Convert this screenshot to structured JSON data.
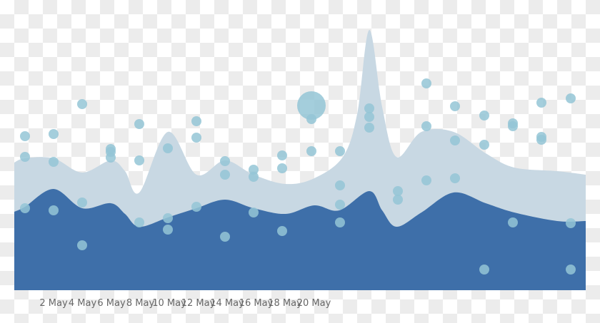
{
  "chart_data": {
    "type": "area",
    "title": "",
    "xlabel": "",
    "ylabel": "",
    "grid": false,
    "legend": "none",
    "x_ticks": [
      "2 May",
      "4 May",
      "6 May",
      "8 May",
      "10 May",
      "12 May",
      "14 May",
      "16 May",
      "18 May",
      "20 May"
    ],
    "colors": {
      "upper_area": "#c8d8e3",
      "lower_area": "#3e6fa9",
      "points": "#94c5d6"
    },
    "series": [
      {
        "name": "upper",
        "type": "area",
        "points": [
          [
            20,
            228
          ],
          [
            35,
            222
          ],
          [
            75,
            222
          ],
          [
            115,
            242
          ],
          [
            155,
            225
          ],
          [
            175,
            240
          ],
          [
            195,
            270
          ],
          [
            235,
            185
          ],
          [
            275,
            245
          ],
          [
            315,
            225
          ],
          [
            355,
            245
          ],
          [
            400,
            258
          ],
          [
            440,
            250
          ],
          [
            480,
            220
          ],
          [
            500,
            160
          ],
          [
            517,
            42
          ],
          [
            535,
            150
          ],
          [
            555,
            220
          ],
          [
            590,
            185
          ],
          [
            635,
            185
          ],
          [
            680,
            215
          ],
          [
            720,
            235
          ],
          [
            780,
            240
          ],
          [
            820,
            245
          ]
        ]
      },
      {
        "name": "lower",
        "type": "area",
        "points": [
          [
            20,
            297
          ],
          [
            35,
            290
          ],
          [
            75,
            265
          ],
          [
            115,
            292
          ],
          [
            155,
            285
          ],
          [
            175,
            300
          ],
          [
            195,
            318
          ],
          [
            235,
            305
          ],
          [
            275,
            292
          ],
          [
            315,
            280
          ],
          [
            355,
            292
          ],
          [
            400,
            300
          ],
          [
            440,
            288
          ],
          [
            475,
            295
          ],
          [
            517,
            268
          ],
          [
            535,
            295
          ],
          [
            555,
            318
          ],
          [
            590,
            298
          ],
          [
            635,
            270
          ],
          [
            680,
            285
          ],
          [
            720,
            298
          ],
          [
            780,
            310
          ],
          [
            820,
            310
          ]
        ]
      }
    ],
    "points": [
      [
        35,
        191
      ],
      [
        35,
        220
      ],
      [
        35,
        292
      ],
      [
        75,
        188
      ],
      [
        75,
        227
      ],
      [
        75,
        295
      ],
      [
        115,
        146
      ],
      [
        115,
        284
      ],
      [
        115,
        344
      ],
      [
        155,
        209
      ],
      [
        155,
        213
      ],
      [
        155,
        221
      ],
      [
        195,
        174
      ],
      [
        195,
        225
      ],
      [
        195,
        312
      ],
      [
        235,
        208
      ],
      [
        235,
        306
      ],
      [
        235,
        322
      ],
      [
        275,
        170
      ],
      [
        275,
        193
      ],
      [
        275,
        290
      ],
      [
        315,
        226
      ],
      [
        315,
        245
      ],
      [
        315,
        332
      ],
      [
        355,
        238
      ],
      [
        355,
        248
      ],
      [
        355,
        298
      ],
      [
        395,
        218
      ],
      [
        395,
        236
      ],
      [
        395,
        324
      ],
      [
        436,
        167
      ],
      [
        436,
        212
      ],
      [
        476,
        212
      ],
      [
        476,
        260
      ],
      [
        476,
        287
      ],
      [
        476,
        312
      ],
      [
        517,
        152
      ],
      [
        517,
        164
      ],
      [
        517,
        179
      ],
      [
        557,
        268
      ],
      [
        557,
        280
      ],
      [
        597,
        117
      ],
      [
        597,
        177
      ],
      [
        597,
        253
      ],
      [
        637,
        149
      ],
      [
        637,
        197
      ],
      [
        637,
        250
      ],
      [
        678,
        162
      ],
      [
        678,
        203
      ],
      [
        678,
        378
      ],
      [
        718,
        173
      ],
      [
        718,
        177
      ],
      [
        718,
        312
      ],
      [
        758,
        144
      ],
      [
        758,
        192
      ],
      [
        758,
        196
      ],
      [
        799,
        138
      ],
      [
        799,
        313
      ],
      [
        799,
        378
      ]
    ],
    "big_point": [
      436,
      148,
      20
    ]
  }
}
